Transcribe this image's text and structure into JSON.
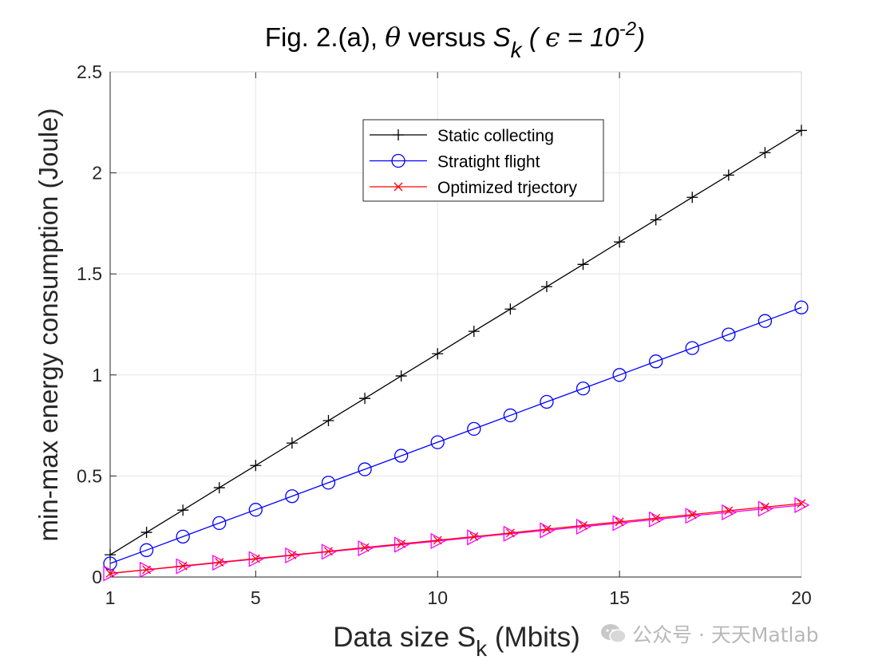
{
  "chart_data": {
    "type": "line",
    "title": {
      "prefix": "Fig. 2.(a), ",
      "theta": "θ",
      "mid": " versus  ",
      "S": "S",
      "k": "k",
      "paren_open": " ( ",
      "eps": "ϵ",
      "eq": " = 10",
      "exp": "-2",
      "paren_close": ")"
    },
    "xlabel": {
      "main": "Data size S",
      "sub": "k",
      "rest": " (Mbits)"
    },
    "ylabel": "min-max energy consumption (Joule)",
    "xlim": [
      1,
      20
    ],
    "ylim": [
      0,
      2.5
    ],
    "xticks": [
      1,
      5,
      10,
      15,
      20
    ],
    "xtick_labels": [
      "1",
      "5",
      "10",
      "15",
      "20"
    ],
    "yticks": [
      0,
      0.5,
      1,
      1.5,
      2,
      2.5
    ],
    "ytick_labels": [
      "0",
      "0.5",
      "1",
      "1.5",
      "2",
      "2.5"
    ],
    "grid": true,
    "legend_position": "top-center",
    "x": [
      1,
      2,
      3,
      4,
      5,
      6,
      7,
      8,
      9,
      10,
      11,
      12,
      13,
      14,
      15,
      16,
      17,
      18,
      19,
      20
    ],
    "series": [
      {
        "name": "Static collecting",
        "color": "#000000",
        "marker": "plus",
        "in_legend": true,
        "values": [
          0.11,
          0.221,
          0.331,
          0.442,
          0.552,
          0.663,
          0.774,
          0.884,
          0.995,
          1.105,
          1.216,
          1.326,
          1.437,
          1.547,
          1.658,
          1.768,
          1.879,
          1.989,
          2.1,
          2.21
        ]
      },
      {
        "name": "Stratight flight",
        "color": "#0000ff",
        "marker": "circle",
        "in_legend": true,
        "values": [
          0.067,
          0.133,
          0.2,
          0.267,
          0.333,
          0.4,
          0.467,
          0.533,
          0.6,
          0.667,
          0.733,
          0.8,
          0.867,
          0.933,
          1.0,
          1.067,
          1.133,
          1.2,
          1.267,
          1.334
        ]
      },
      {
        "name": "",
        "color": "#ff00ff",
        "marker": "triangle-right",
        "in_legend": false,
        "values": [
          0.018,
          0.036,
          0.053,
          0.071,
          0.089,
          0.107,
          0.125,
          0.142,
          0.16,
          0.178,
          0.196,
          0.214,
          0.231,
          0.249,
          0.267,
          0.285,
          0.303,
          0.32,
          0.338,
          0.356
        ]
      },
      {
        "name": "Optimized trjectory",
        "color": "#ff0000",
        "marker": "x",
        "in_legend": true,
        "values": [
          0.018,
          0.036,
          0.055,
          0.073,
          0.091,
          0.109,
          0.127,
          0.146,
          0.164,
          0.182,
          0.2,
          0.218,
          0.237,
          0.255,
          0.273,
          0.291,
          0.309,
          0.328,
          0.346,
          0.364
        ]
      }
    ]
  },
  "watermark": {
    "text": "公众号 · 天天Matlab",
    "icon": "wechat-icon"
  }
}
